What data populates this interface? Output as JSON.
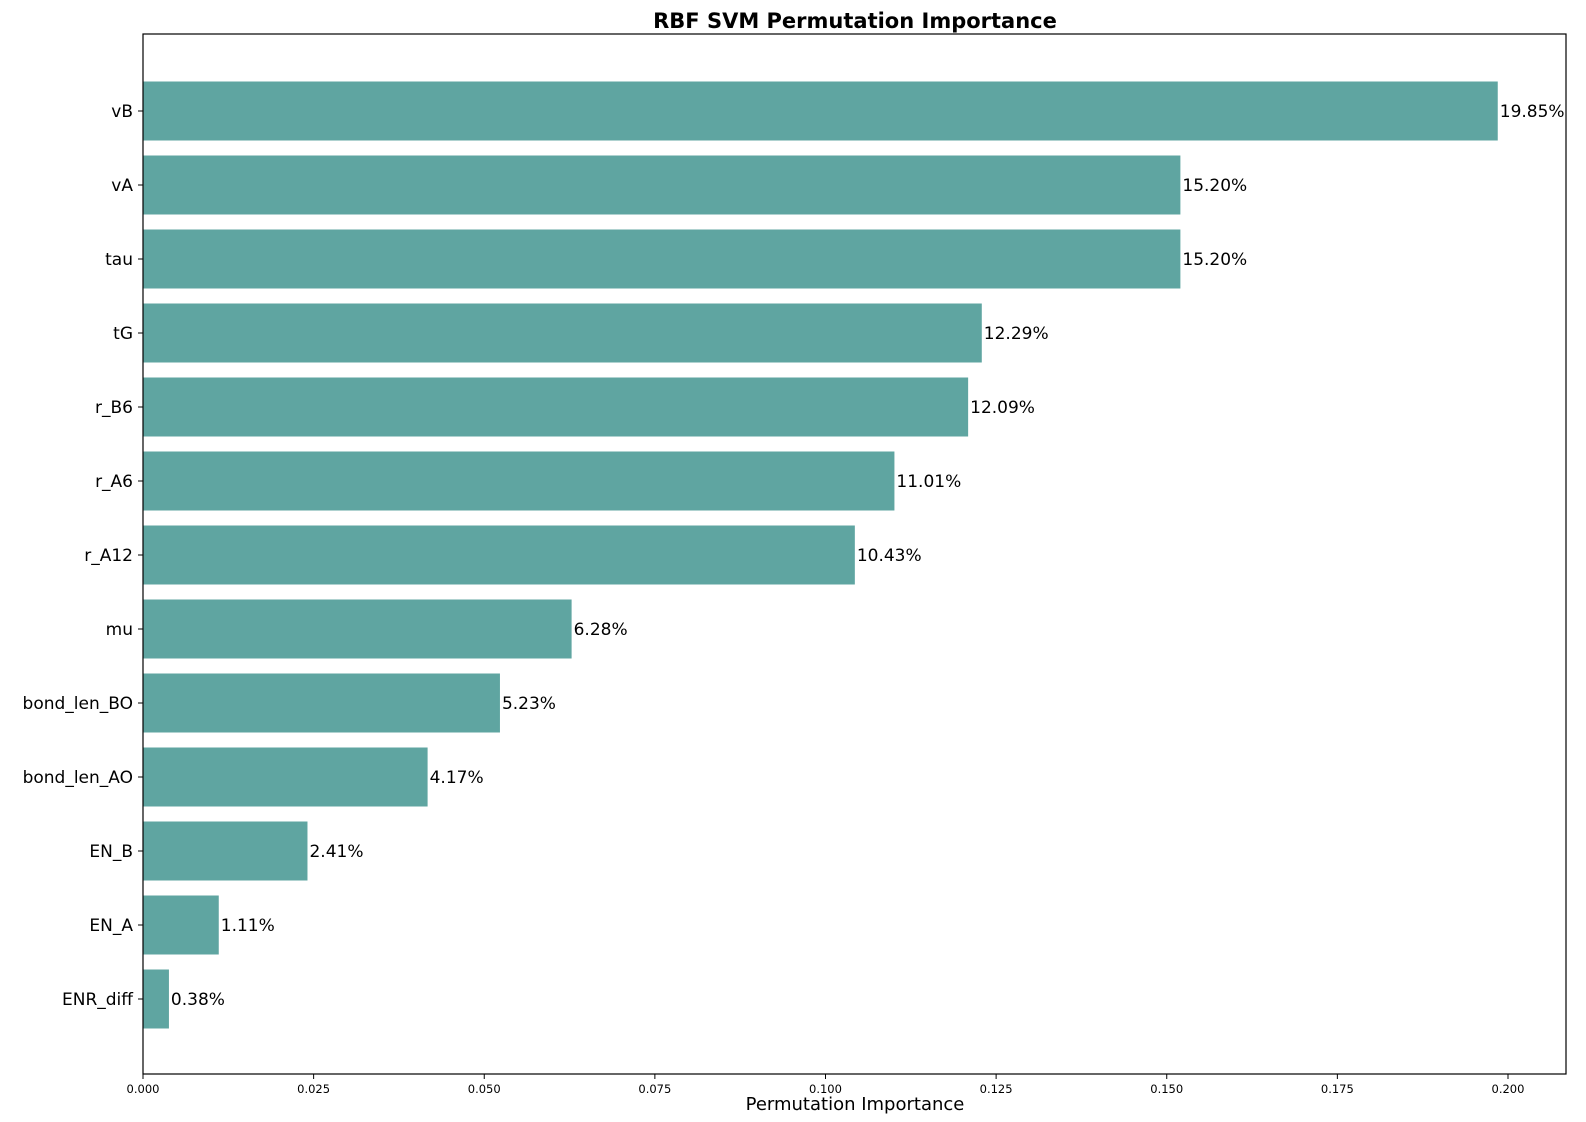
{
  "chart_data": {
    "type": "bar",
    "orientation": "horizontal",
    "title": "RBF SVM Permutation Importance",
    "xlabel": "Permutation Importance",
    "ylabel": "",
    "categories": [
      "vB",
      "vA",
      "tau",
      "tG",
      "r_B6",
      "r_A6",
      "r_A12",
      "mu",
      "bond_len_BO",
      "bond_len_AO",
      "EN_B",
      "EN_A",
      "ENR_diff"
    ],
    "values": [
      0.1985,
      0.152,
      0.152,
      0.1229,
      0.1209,
      0.1101,
      0.1043,
      0.0628,
      0.0523,
      0.0417,
      0.0241,
      0.0111,
      0.0038
    ],
    "data_labels": [
      "19.85%",
      "15.20%",
      "15.20%",
      "12.29%",
      "12.09%",
      "11.01%",
      "10.43%",
      "6.28%",
      "5.23%",
      "4.17%",
      "2.41%",
      "1.11%",
      "0.38%"
    ],
    "xlim": [
      0,
      0.2085
    ],
    "xticks": [
      0.0,
      0.025,
      0.05,
      0.075,
      0.1,
      0.125,
      0.15,
      0.175,
      0.2
    ],
    "xtick_labels": [
      "0.000",
      "0.025",
      "0.050",
      "0.075",
      "0.100",
      "0.125",
      "0.150",
      "0.175",
      "0.200"
    ],
    "grid": false,
    "legend": "none",
    "bar_color": "#5fa5a1"
  }
}
